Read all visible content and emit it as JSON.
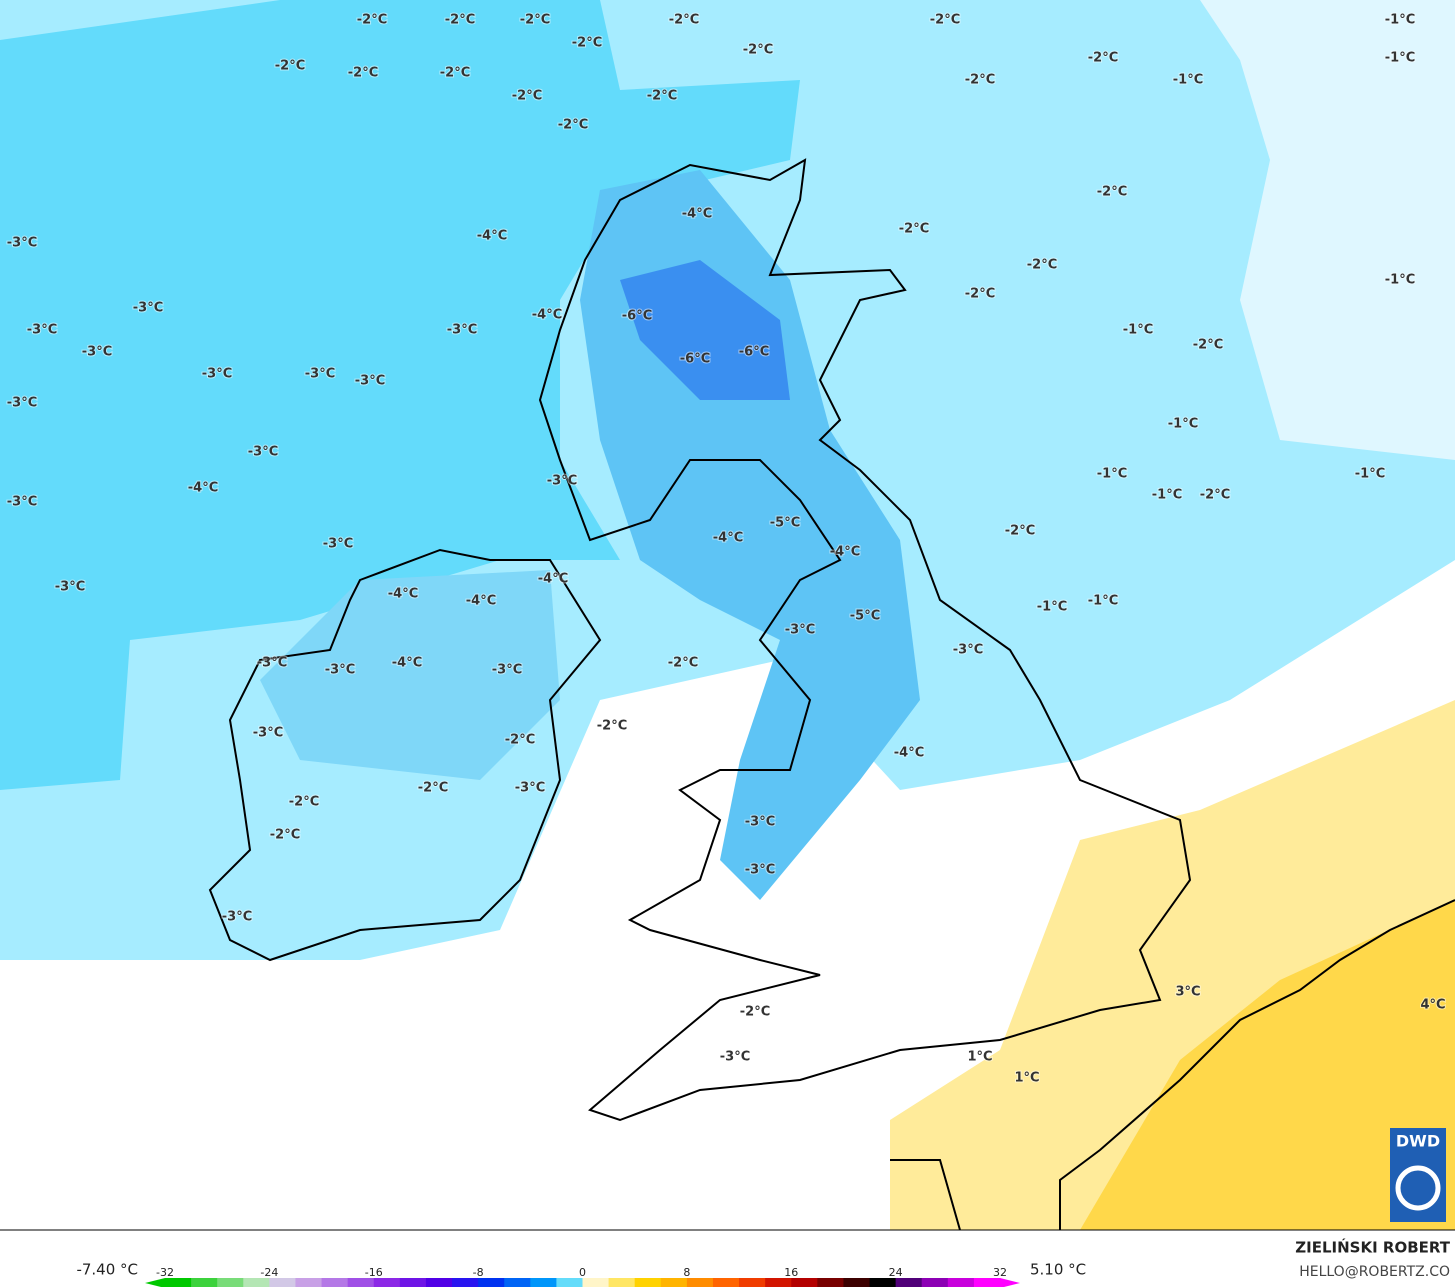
{
  "map": {
    "labels": [
      "-2°C",
      "-2°C",
      "-2°C",
      "-2°C",
      "-2°C",
      "-2°C",
      "-2°C",
      "-2°C",
      "-2°C",
      "-2°C",
      "-2°C",
      "-2°C",
      "-2°C",
      "-2°C",
      "-2°C",
      "-2°C",
      "-2°C",
      "-2°C",
      "-2°C",
      "-2°C",
      "-2°C",
      "-2°C",
      "-2°C",
      "-2°C",
      "-2°C",
      "-2°C",
      "-2°C",
      "-2°C",
      "-2°C",
      "-1°C",
      "-1°C",
      "-1°C",
      "-1°C",
      "-1°C",
      "-1°C",
      "-1°C",
      "-1°C",
      "-1°C",
      "-1°C",
      "-1°C",
      "-3°C",
      "-3°C",
      "-3°C",
      "-3°C",
      "-3°C",
      "-3°C",
      "-3°C",
      "-3°C",
      "-3°C",
      "-3°C",
      "-3°C",
      "-3°C",
      "-3°C",
      "-3°C",
      "-3°C",
      "-3°C",
      "-3°C",
      "-3°C",
      "-3°C",
      "-3°C",
      "-3°C",
      "-3°C",
      "-3°C",
      "-3°C",
      "-3°C",
      "-4°C",
      "-4°C",
      "-4°C",
      "-4°C",
      "-4°C",
      "-4°C",
      "-4°C",
      "-4°C",
      "-4°C",
      "-4°C",
      "-4°C",
      "-5°C",
      "-5°C",
      "-6°C",
      "-6°C",
      "-6°C",
      "3°C",
      "4°C",
      "1°C",
      "1°C"
    ]
  },
  "colorbar": {
    "min_label": "-7.40 °C",
    "max_label": "5.10 °C",
    "ticks": [
      -32,
      -24,
      -16,
      -8,
      0,
      8,
      16,
      24,
      32
    ],
    "colors": [
      "#00c800",
      "#3cd23c",
      "#78dc78",
      "#b4e6b4",
      "#d2c8e6",
      "#c8a0e6",
      "#b478e6",
      "#a050e6",
      "#8c28e6",
      "#6e14e6",
      "#5000e6",
      "#2814f0",
      "#0032f0",
      "#0064f5",
      "#0096fa",
      "#64dcfa",
      "#fff5c8",
      "#ffe664",
      "#ffd200",
      "#ffb400",
      "#ff8c00",
      "#ff6400",
      "#f03c00",
      "#d21400",
      "#b40000",
      "#780000",
      "#3c0000",
      "#000000",
      "#500078",
      "#8c00b4",
      "#c800dc",
      "#ff00ff"
    ]
  },
  "credit": {
    "name": "ZIELIŃSKI ROBERT",
    "email": "HELLO@ROBERTZ.CO",
    "logo": "DWD"
  }
}
